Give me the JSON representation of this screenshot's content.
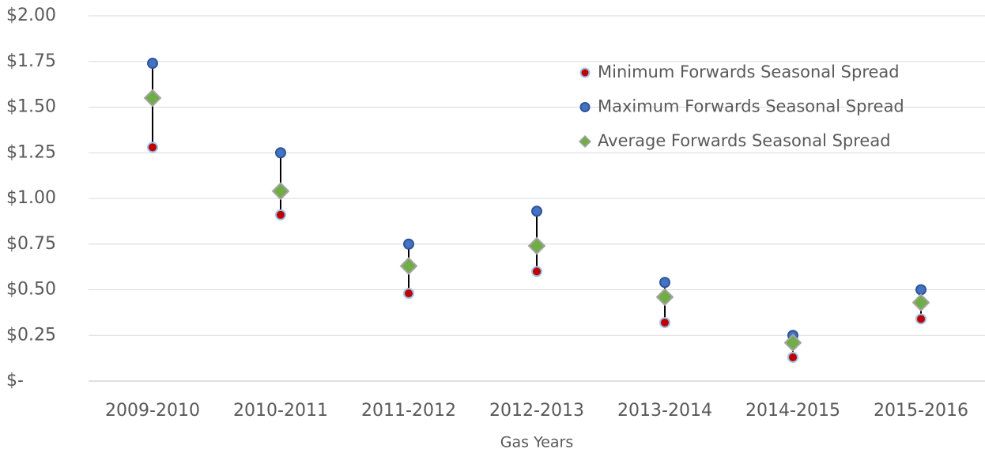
{
  "chart_data": {
    "type": "dot_range",
    "x_label": "Gas Years",
    "categories": [
      "2009-2010",
      "2010-2011",
      "2011-2012",
      "2012-2013",
      "2013-2014",
      "2014-2015",
      "2015-2016"
    ],
    "series": [
      {
        "name": "Minimum Forwards Seasonal Spread",
        "color": "#c00000",
        "edgecolor": "#9dc3e6",
        "marker": "circle",
        "values": [
          1.28,
          0.91,
          0.48,
          0.6,
          0.32,
          0.13,
          0.34
        ]
      },
      {
        "name": "Maximum Forwards Seasonal Spread",
        "color": "#4472c4",
        "edgecolor": "#2f5597",
        "marker": "circle",
        "values": [
          1.74,
          1.25,
          0.75,
          0.93,
          0.54,
          0.25,
          0.5
        ]
      },
      {
        "name": "Average Forwards Seasonal Spread",
        "color": "#70ad47",
        "edgecolor": "#a5a5a5",
        "marker": "diamond",
        "values": [
          1.55,
          1.04,
          0.63,
          0.74,
          0.46,
          0.21,
          0.43
        ]
      }
    ],
    "range_line_color": "#000000",
    "ylim": [
      0,
      2
    ],
    "yticks": [
      {
        "value": 0,
        "label": "$-"
      },
      {
        "value": 0.25,
        "label": "$0.25"
      },
      {
        "value": 0.5,
        "label": "$0.50"
      },
      {
        "value": 0.75,
        "label": "$0.75"
      },
      {
        "value": 1,
        "label": "$1.00"
      },
      {
        "value": 1.25,
        "label": "$1.25"
      },
      {
        "value": 1.5,
        "label": "$1.50"
      },
      {
        "value": 1.75,
        "label": "$1.75"
      },
      {
        "value": 2,
        "label": "$2.00"
      }
    ],
    "grid": true,
    "legend": "upper right"
  }
}
